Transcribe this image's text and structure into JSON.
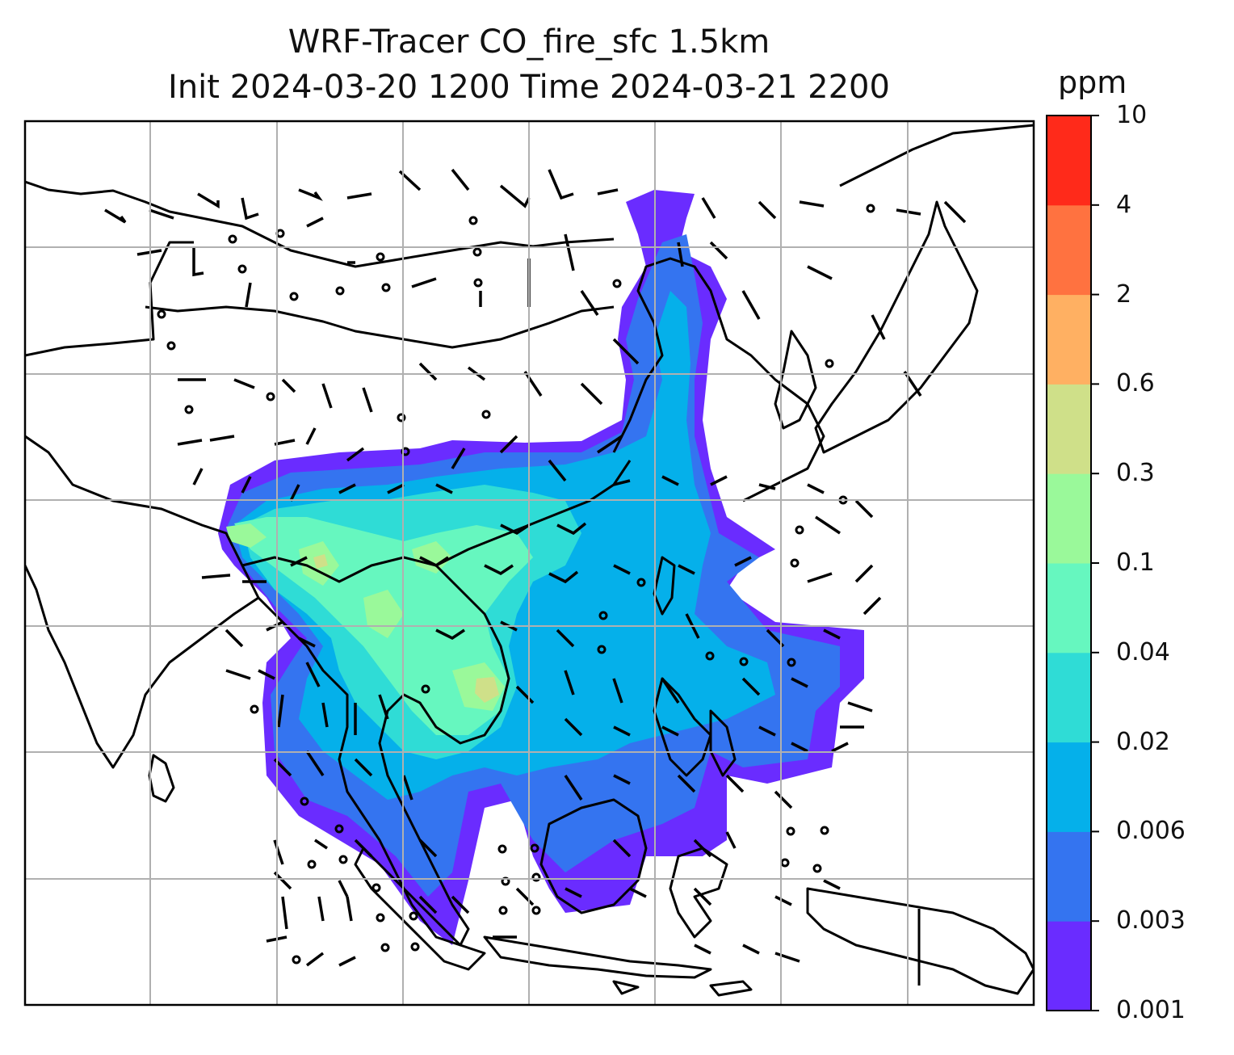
{
  "title": {
    "line1": "WRF-Tracer CO_fire_sfc 1.5km",
    "line2": "Init 2024-03-20 1200 Time 2024-03-21 2200"
  },
  "colorbar": {
    "unit": "ppm",
    "levels": [
      "0.001",
      "0.003",
      "0.006",
      "0.02",
      "0.04",
      "0.1",
      "0.3",
      "0.6",
      "2",
      "4",
      "10"
    ],
    "colors": [
      "#6a2cff",
      "#3474f0",
      "#05b0ea",
      "#2fdcd6",
      "#66f7bf",
      "#9af99a",
      "#cfe089",
      "#ffb062",
      "#ff7240",
      "#ff2a1a"
    ]
  },
  "map": {
    "gridlines": "on",
    "coastlines": "on",
    "wind_barbs": "on"
  }
}
